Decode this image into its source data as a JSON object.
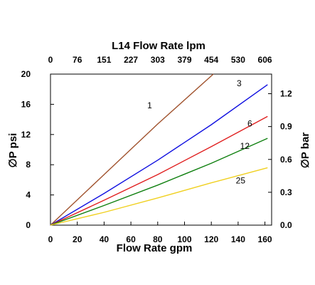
{
  "chart_data": {
    "type": "line",
    "title": "L14 Flow Rate lpm",
    "xlabel": "Flow Rate gpm",
    "ylabel": "∅P psi",
    "y2label": "∅P bar",
    "xlim": [
      0,
      165
    ],
    "ylim": [
      0,
      20
    ],
    "x_ticks": [
      "0",
      "20",
      "40",
      "60",
      "80",
      "100",
      "120",
      "140",
      "160"
    ],
    "y_ticks": [
      "0",
      "4",
      "8",
      "12",
      "16",
      "20"
    ],
    "x2_ticks": [
      "0",
      "76",
      "151",
      "227",
      "303",
      "379",
      "454",
      "530",
      "606"
    ],
    "y2_ticks": [
      "0.0",
      "0.3",
      "0.6",
      "0.9",
      "1.2"
    ],
    "grid": false,
    "series": [
      {
        "name": "1",
        "color": "#a0522d",
        "x": [
          0,
          40,
          80,
          121.5
        ],
        "y": [
          0,
          6.7,
          13.4,
          20.0
        ]
      },
      {
        "name": "3",
        "color": "#1010e0",
        "x": [
          0,
          40,
          80,
          120,
          162
        ],
        "y": [
          0,
          4.2,
          8.6,
          13.3,
          18.6
        ]
      },
      {
        "name": "6",
        "color": "#e02020",
        "x": [
          0,
          40,
          80,
          120,
          162
        ],
        "y": [
          0,
          3.3,
          6.7,
          10.4,
          14.4
        ]
      },
      {
        "name": "12",
        "color": "#108010",
        "x": [
          0,
          40,
          80,
          120,
          162
        ],
        "y": [
          0,
          2.6,
          5.3,
          8.2,
          11.5
        ]
      },
      {
        "name": "25",
        "color": "#f0d020",
        "x": [
          0,
          40,
          80,
          120,
          162
        ],
        "y": [
          0,
          1.7,
          3.6,
          5.6,
          7.6
        ]
      }
    ]
  }
}
